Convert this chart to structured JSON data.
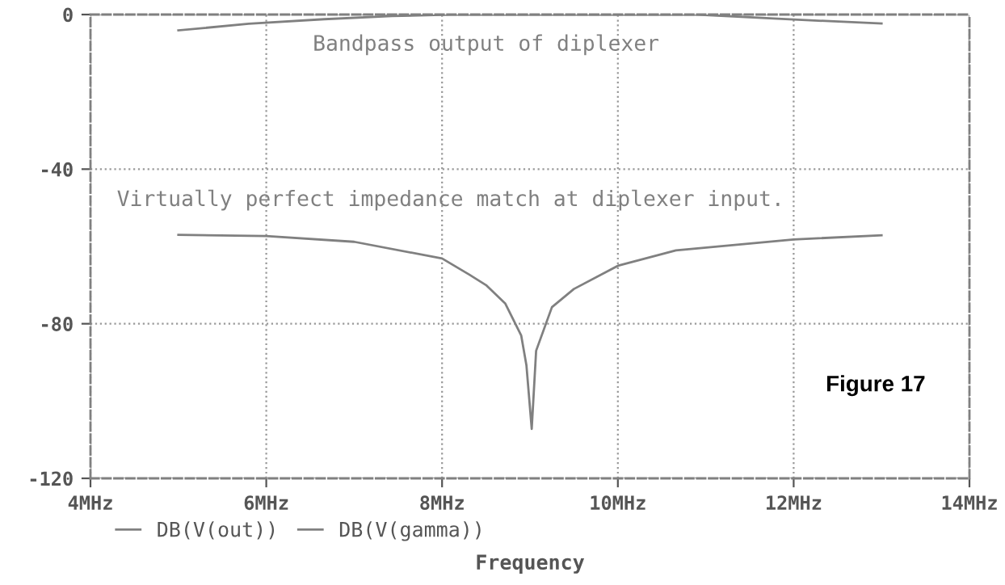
{
  "chart_data": {
    "type": "line",
    "xlabel": "Frequency",
    "xlim": [
      4,
      14
    ],
    "xticks": [
      {
        "value": 4,
        "label": "4MHz"
      },
      {
        "value": 6,
        "label": "6MHz"
      },
      {
        "value": 8,
        "label": "8MHz"
      },
      {
        "value": 10,
        "label": "10MHz"
      },
      {
        "value": 12,
        "label": "12MHz"
      },
      {
        "value": 14,
        "label": "14MHz"
      }
    ],
    "ylim": [
      -120,
      0
    ],
    "yticks": [
      0,
      -40,
      -80,
      -120
    ],
    "series": [
      {
        "name": "DB(V(out))",
        "color": "#808080",
        "x": [
          5.0,
          5.8,
          6.66,
          7.43,
          8.1,
          9.0,
          10.0,
          10.9,
          12.0,
          13.0
        ],
        "values": [
          -4.1,
          -2.4,
          -1.2,
          -0.4,
          0,
          0,
          0,
          0,
          -1.3,
          -2.3
        ]
      },
      {
        "name": "DB(V(gamma))",
        "color": "#808080",
        "x": [
          5.0,
          6.0,
          7.0,
          8.0,
          8.31,
          8.5,
          8.72,
          8.9,
          8.96,
          9.02,
          9.07,
          9.25,
          9.5,
          10.0,
          10.66,
          12.0,
          13.0
        ],
        "values": [
          -57,
          -57.3,
          -58.8,
          -63.1,
          -67.3,
          -70,
          -74.8,
          -83,
          -90.8,
          -107.2,
          -87,
          -75.7,
          -71,
          -65,
          -61,
          -58.2,
          -57.1
        ]
      }
    ],
    "annotations": [
      "Bandpass output of diplexer",
      "Virtually perfect impedance match at diplexer input.",
      "Figure 17"
    ],
    "grid": true,
    "line_style": "solid",
    "legend": "bottom"
  }
}
